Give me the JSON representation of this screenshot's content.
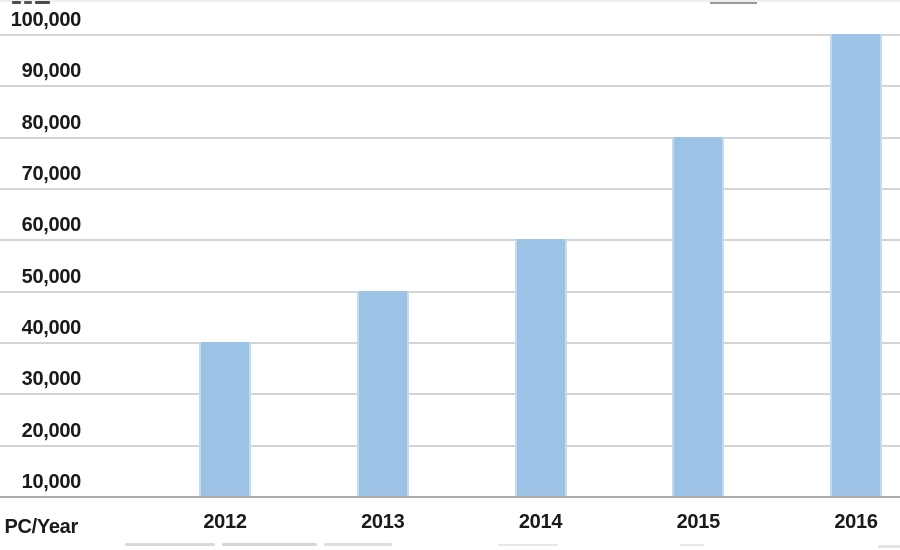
{
  "chart_data": {
    "type": "bar",
    "title": "",
    "origin_label": "PC/Year",
    "categories": [
      "2012",
      "2013",
      "2014",
      "2015",
      "2016"
    ],
    "values": [
      40000,
      50000,
      60000,
      80000,
      100000
    ],
    "ylim": [
      10000,
      100000
    ],
    "ytick_step": 10000,
    "yticks": [
      {
        "value": 10000,
        "label": "10,000"
      },
      {
        "value": 20000,
        "label": "20,000"
      },
      {
        "value": 30000,
        "label": "30,000"
      },
      {
        "value": 40000,
        "label": "40,000"
      },
      {
        "value": 50000,
        "label": "50,000"
      },
      {
        "value": 60000,
        "label": "60,000"
      },
      {
        "value": 70000,
        "label": "70,000"
      },
      {
        "value": 80000,
        "label": "80,000"
      },
      {
        "value": 90000,
        "label": "90,000"
      },
      {
        "value": 100000,
        "label": "100,000"
      }
    ],
    "grid": true,
    "legend": false,
    "colors": {
      "bar": "#9CC2E5",
      "gridline": "#D4D4D4",
      "axis_line": "#ABABAB",
      "text": "#1A1A1A"
    }
  }
}
